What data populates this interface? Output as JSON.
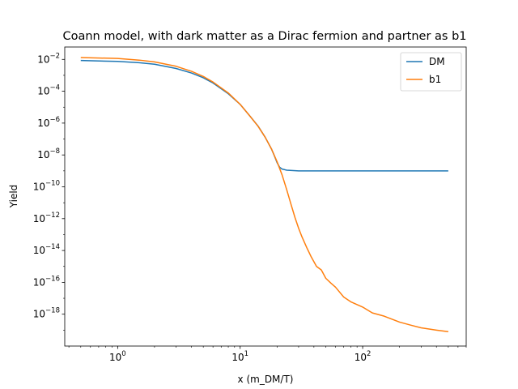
{
  "chart_data": {
    "type": "line",
    "title": "Coann model, with dark matter as a Dirac fermion and partner as b1",
    "xlabel": "x (m_DM/T)",
    "ylabel": "Yield",
    "xscale": "log",
    "yscale": "log",
    "xlim": [
      0.37,
      700
    ],
    "ylim": [
      1e-20,
      0.06
    ],
    "legend": "top-right",
    "grid": false,
    "x_ticks": [
      {
        "value": 1,
        "base": "10",
        "exp": "0"
      },
      {
        "value": 10,
        "base": "10",
        "exp": "1"
      },
      {
        "value": 100,
        "base": "10",
        "exp": "2"
      }
    ],
    "y_ticks": [
      {
        "value": 0.01,
        "base": "10",
        "exp": "−2"
      },
      {
        "value": 0.0001,
        "base": "10",
        "exp": "−4"
      },
      {
        "value": 1e-06,
        "base": "10",
        "exp": "−6"
      },
      {
        "value": 1e-08,
        "base": "10",
        "exp": "−8"
      },
      {
        "value": 1e-10,
        "base": "10",
        "exp": "−10"
      },
      {
        "value": 1e-12,
        "base": "10",
        "exp": "−12"
      },
      {
        "value": 1e-14,
        "base": "10",
        "exp": "−14"
      },
      {
        "value": 1e-16,
        "base": "10",
        "exp": "−16"
      },
      {
        "value": 1e-18,
        "base": "10",
        "exp": "−18"
      }
    ],
    "series": [
      {
        "name": "DM",
        "color": "#1f77b4",
        "x": [
          0.5,
          1,
          1.5,
          2,
          3,
          4,
          5,
          6,
          8,
          10,
          12,
          14,
          16,
          18,
          19,
          20,
          21,
          22,
          23,
          24,
          30,
          50,
          100,
          200,
          500
        ],
        "y": [
          0.0085,
          0.0075,
          0.0062,
          0.005,
          0.0027,
          0.0014,
          0.0007,
          0.00033,
          7e-05,
          1.5e-05,
          2.8e-06,
          6.5e-07,
          1.3e-07,
          2.4e-08,
          9e-09,
          3.3e-09,
          1.7e-09,
          1.3e-09,
          1.2e-09,
          1.1e-09,
          1e-09,
          1e-09,
          1e-09,
          1e-09,
          1e-09
        ]
      },
      {
        "name": "b1",
        "color": "#ff7f0e",
        "x": [
          0.5,
          1,
          1.5,
          2,
          3,
          4,
          5,
          6,
          8,
          10,
          12,
          14,
          16,
          18,
          20,
          22,
          24,
          26,
          28,
          30,
          32,
          35,
          38,
          42,
          46,
          50,
          55,
          60,
          70,
          80,
          100,
          120,
          150,
          200,
          250,
          300,
          400,
          500
        ],
        "y": [
          0.013,
          0.0115,
          0.009,
          0.007,
          0.0037,
          0.0018,
          0.00085,
          0.00038,
          7.8e-05,
          1.5e-05,
          2.8e-06,
          6.3e-07,
          1.3e-07,
          2.4e-08,
          3.8e-09,
          5.5e-10,
          6.5e-11,
          8e-12,
          1.2e-12,
          2.5e-13,
          7e-14,
          1.5e-14,
          4e-15,
          1e-15,
          6e-16,
          1.8e-16,
          9e-17,
          5e-17,
          1.2e-17,
          6e-18,
          2.8e-18,
          1.2e-18,
          7.5e-19,
          3.2e-19,
          2e-19,
          1.4e-19,
          1e-19,
          8e-20
        ]
      }
    ]
  }
}
